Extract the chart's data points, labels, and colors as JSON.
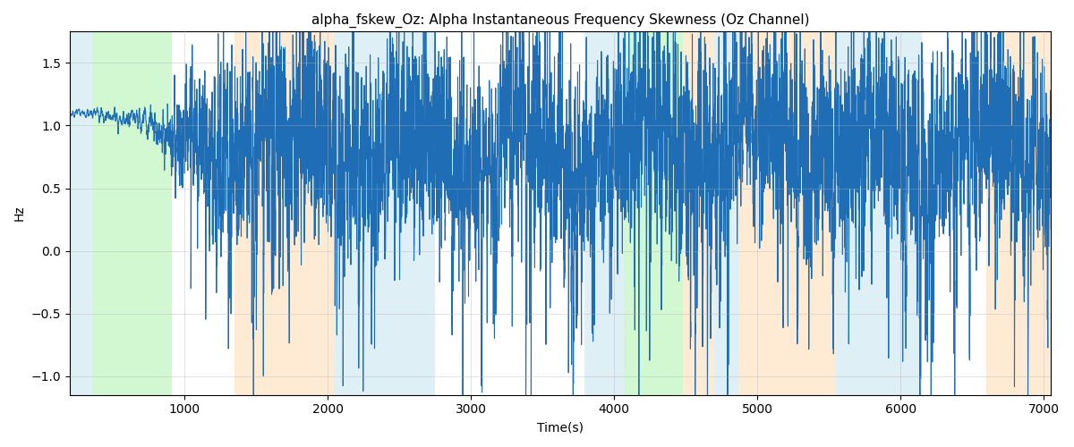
{
  "title": "alpha_fskew_Oz: Alpha Instantaneous Frequency Skewness (Oz Channel)",
  "xlabel": "Time(s)",
  "ylabel": "Hz",
  "xlim": [
    200,
    7050
  ],
  "ylim": [
    -1.15,
    1.75
  ],
  "yticks": [
    -1.0,
    -0.5,
    0.0,
    0.5,
    1.0,
    1.5
  ],
  "xticks": [
    1000,
    2000,
    3000,
    4000,
    5000,
    6000,
    7000
  ],
  "background_bands": [
    {
      "xmin": 200,
      "xmax": 355,
      "color": "#add8e6",
      "alpha": 0.4
    },
    {
      "xmin": 355,
      "xmax": 910,
      "color": "#90ee90",
      "alpha": 0.4
    },
    {
      "xmin": 1350,
      "xmax": 2050,
      "color": "#ffd8a8",
      "alpha": 0.5
    },
    {
      "xmin": 2050,
      "xmax": 2750,
      "color": "#add8e6",
      "alpha": 0.4
    },
    {
      "xmin": 3790,
      "xmax": 4070,
      "color": "#add8e6",
      "alpha": 0.4
    },
    {
      "xmin": 4070,
      "xmax": 4480,
      "color": "#90ee90",
      "alpha": 0.4
    },
    {
      "xmin": 4480,
      "xmax": 4700,
      "color": "#ffd8a8",
      "alpha": 0.5
    },
    {
      "xmin": 4700,
      "xmax": 4870,
      "color": "#add8e6",
      "alpha": 0.4
    },
    {
      "xmin": 4870,
      "xmax": 5550,
      "color": "#ffd8a8",
      "alpha": 0.5
    },
    {
      "xmin": 5550,
      "xmax": 6150,
      "color": "#add8e6",
      "alpha": 0.4
    },
    {
      "xmin": 6600,
      "xmax": 7050,
      "color": "#ffd8a8",
      "alpha": 0.5
    }
  ],
  "line_color": "#1f6eb5",
  "line_width": 0.8,
  "grid_color": "#b0b0b0",
  "grid_alpha": 0.5,
  "grid_linewidth": 0.5,
  "figsize": [
    12,
    5
  ],
  "dpi": 100,
  "title_fontsize": 11
}
